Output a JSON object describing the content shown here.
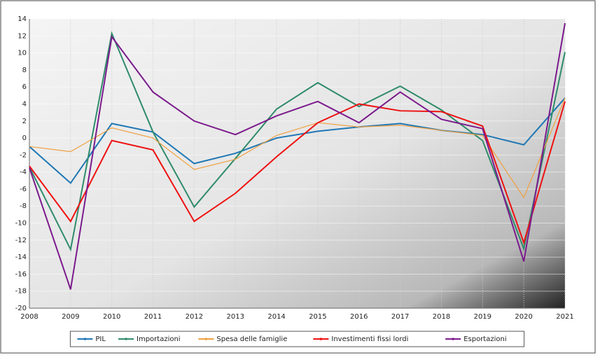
{
  "chart_data": {
    "type": "line",
    "categories": [
      "2008",
      "2009",
      "2010",
      "2011",
      "2012",
      "2013",
      "2014",
      "2015",
      "2016",
      "2017",
      "2018",
      "2019",
      "2020",
      "2021"
    ],
    "series": [
      {
        "name": "PIL",
        "color": "#1f77b4",
        "values": [
          -1.0,
          -5.3,
          1.7,
          0.7,
          -3.0,
          -1.8,
          0.0,
          0.8,
          1.3,
          1.7,
          0.9,
          0.4,
          -0.8,
          4.7
        ]
      },
      {
        "name": "Importazioni",
        "color": "#2e8b6a",
        "values": [
          -3.4,
          -13.1,
          12.3,
          0.7,
          -8.1,
          -2.4,
          3.4,
          6.5,
          3.7,
          6.1,
          3.3,
          -0.3,
          -13.0,
          10.1
        ]
      },
      {
        "name": "Spesa delle famiglie",
        "color": "#f0a040",
        "values": [
          -1.0,
          -1.6,
          1.2,
          0.0,
          -3.7,
          -2.5,
          0.3,
          1.8,
          1.3,
          1.5,
          0.9,
          0.3,
          -7.0,
          4.7
        ]
      },
      {
        "name": "Investimenti fissi lordi",
        "color": "#ee1111",
        "values": [
          -3.3,
          -9.8,
          -0.3,
          -1.4,
          -9.8,
          -6.5,
          -2.2,
          1.8,
          4.0,
          3.2,
          3.1,
          1.4,
          -12.3,
          4.3
        ]
      },
      {
        "name": "Esportazioni",
        "color": "#7b1a8c",
        "values": [
          -3.5,
          -17.8,
          11.9,
          5.4,
          2.0,
          0.4,
          2.6,
          4.3,
          1.8,
          5.4,
          2.2,
          1.1,
          -14.5,
          13.5
        ]
      }
    ],
    "ylim": [
      -20,
      14
    ],
    "yticks": [
      -20,
      -18,
      -16,
      -14,
      -12,
      -10,
      -8,
      -6,
      -4,
      -2,
      0,
      2,
      4,
      6,
      8,
      10,
      12,
      14
    ],
    "grid": true,
    "legend": "bottom"
  }
}
